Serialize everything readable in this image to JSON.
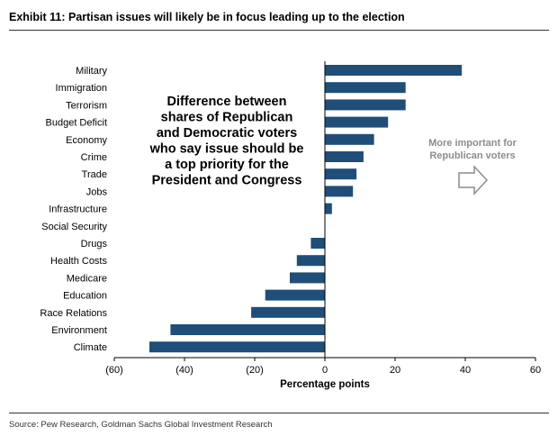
{
  "header": {
    "title": "Exhibit 11: Partisan issues will likely be in focus leading up to the election"
  },
  "footer": {
    "source": "Source: Pew Research, Goldman Sachs Global Investment Research"
  },
  "colors": {
    "bar": "#1f4e79",
    "axis": "#000000",
    "annotation_gray": "#8c8c8c"
  },
  "chart_data": {
    "type": "bar",
    "orientation": "horizontal",
    "categories": [
      "Military",
      "Immigration",
      "Terrorism",
      "Budget Deficit",
      "Economy",
      "Crime",
      "Trade",
      "Jobs",
      "Infrastructure",
      "Social Security",
      "Drugs",
      "Health Costs",
      "Medicare",
      "Education",
      "Race Relations",
      "Environment",
      "Climate"
    ],
    "values": [
      39,
      23,
      23,
      18,
      14,
      11,
      9,
      8,
      2,
      0,
      -4,
      -8,
      -10,
      -17,
      -21,
      -44,
      -50
    ],
    "xlabel": "Percentage points",
    "xlim": [
      -60,
      60
    ],
    "xticks": [
      -60,
      -40,
      -20,
      0,
      20,
      40,
      60
    ],
    "xtick_labels": [
      "(60)",
      "(40)",
      "(20)",
      "0",
      "20",
      "40",
      "60"
    ],
    "grid": false,
    "annotations": {
      "main_lines": [
        "Difference between",
        "shares of Republican",
        "and Democratic voters",
        "who say issue should be",
        "a top priority for the",
        "President and Congress"
      ],
      "side_lines": [
        "More important for",
        "Republican voters"
      ],
      "arrow": "right-arrow-outline"
    }
  }
}
